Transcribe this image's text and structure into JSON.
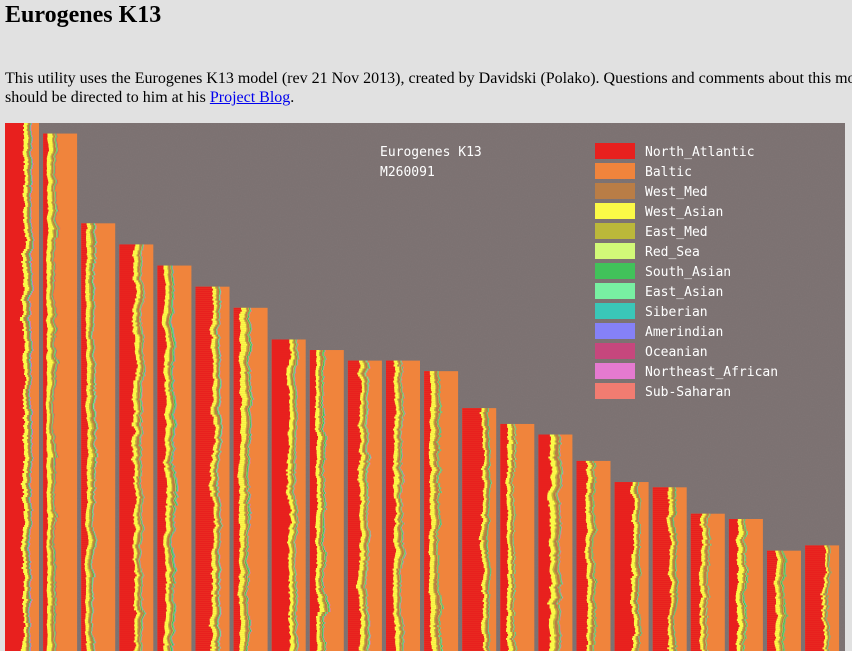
{
  "page": {
    "title": "Eurogenes K13",
    "intro_part1": "This utility uses the Eurogenes K13 model (rev 21 Nov 2013), created by Davidski (Polako). Questions and comments about this mo",
    "intro_part2": "should be directed to him at his ",
    "link_label": "Project Blog",
    "intro_end": "."
  },
  "chart_data": {
    "type": "bar",
    "title": "Eurogenes K13",
    "subtitle": "M260091",
    "background_color": "#7f7575",
    "legend_position": "top-right",
    "components": [
      {
        "name": "North_Atlantic",
        "color": "#e8201e"
      },
      {
        "name": "Baltic",
        "color": "#f0843c"
      },
      {
        "name": "West_Med",
        "color": "#b97d46"
      },
      {
        "name": "West_Asian",
        "color": "#fbfa47"
      },
      {
        "name": "East_Med",
        "color": "#bbb83a"
      },
      {
        "name": "Red_Sea",
        "color": "#d2f978"
      },
      {
        "name": "South_Asian",
        "color": "#41c25a"
      },
      {
        "name": "East_Asian",
        "color": "#78f0a2"
      },
      {
        "name": "Siberian",
        "color": "#3ac7b8"
      },
      {
        "name": "Amerindian",
        "color": "#8581f7"
      },
      {
        "name": "Oceanian",
        "color": "#c6477d"
      },
      {
        "name": "Northeast_African",
        "color": "#e57ad0"
      },
      {
        "name": "Sub-Saharan",
        "color": "#f17c71"
      }
    ],
    "columns": [
      {
        "value": 100,
        "mix": [
          0.55,
          0.22,
          0.05,
          0.1,
          0.02,
          0,
          0.02,
          0.01,
          0.01,
          0.01,
          0,
          0.01,
          0
        ]
      },
      {
        "value": 98,
        "mix": [
          0.12,
          0.62,
          0.05,
          0.12,
          0.03,
          0.01,
          0.02,
          0.01,
          0.01,
          0,
          0.01,
          0,
          0
        ]
      },
      {
        "value": 81,
        "mix": [
          0.15,
          0.6,
          0.05,
          0.1,
          0.04,
          0,
          0.02,
          0.02,
          0.01,
          0,
          0,
          0.01,
          0
        ]
      },
      {
        "value": 77,
        "mix": [
          0.45,
          0.3,
          0.06,
          0.1,
          0.03,
          0.01,
          0.02,
          0.01,
          0.01,
          0,
          0,
          0.01,
          0
        ]
      },
      {
        "value": 73,
        "mix": [
          0.22,
          0.5,
          0.06,
          0.11,
          0.03,
          0.01,
          0.03,
          0.01,
          0.02,
          0,
          0,
          0.01,
          0
        ]
      },
      {
        "value": 69,
        "mix": [
          0.5,
          0.26,
          0.05,
          0.1,
          0.03,
          0,
          0.02,
          0.02,
          0.01,
          0,
          0,
          0.01,
          0
        ]
      },
      {
        "value": 65,
        "mix": [
          0.2,
          0.5,
          0.06,
          0.14,
          0.03,
          0.01,
          0.03,
          0.01,
          0.01,
          0,
          0,
          0.01,
          0
        ]
      },
      {
        "value": 59,
        "mix": [
          0.5,
          0.27,
          0.04,
          0.1,
          0.03,
          0.01,
          0.02,
          0.01,
          0.01,
          0,
          0,
          0.01,
          0
        ]
      },
      {
        "value": 57,
        "mix": [
          0.2,
          0.55,
          0.05,
          0.1,
          0.03,
          0.01,
          0.03,
          0.01,
          0.01,
          0,
          0,
          0.01,
          0
        ]
      },
      {
        "value": 55,
        "mix": [
          0.35,
          0.38,
          0.06,
          0.11,
          0.03,
          0.01,
          0.02,
          0.02,
          0.01,
          0,
          0,
          0.01,
          0
        ]
      },
      {
        "value": 55,
        "mix": [
          0.25,
          0.5,
          0.05,
          0.11,
          0.03,
          0.01,
          0.02,
          0.01,
          0.01,
          0,
          0,
          0.01,
          0
        ]
      },
      {
        "value": 53,
        "mix": [
          0.18,
          0.55,
          0.07,
          0.12,
          0.03,
          0.01,
          0.02,
          0.01,
          0.01,
          0,
          0,
          0,
          0
        ]
      },
      {
        "value": 46,
        "mix": [
          0.6,
          0.2,
          0.05,
          0.08,
          0.03,
          0,
          0.02,
          0.01,
          0.01,
          0,
          0,
          0,
          0
        ]
      },
      {
        "value": 43,
        "mix": [
          0.2,
          0.58,
          0.05,
          0.1,
          0.03,
          0.01,
          0.01,
          0.01,
          0.01,
          0,
          0,
          0,
          0
        ]
      },
      {
        "value": 41,
        "mix": [
          0.35,
          0.35,
          0.08,
          0.12,
          0.04,
          0.01,
          0.02,
          0.01,
          0.01,
          0,
          0,
          0.01,
          0
        ]
      },
      {
        "value": 36,
        "mix": [
          0.3,
          0.45,
          0.06,
          0.11,
          0.03,
          0.01,
          0.02,
          0.01,
          0.01,
          0,
          0,
          0,
          0
        ]
      },
      {
        "value": 32,
        "mix": [
          0.55,
          0.25,
          0.05,
          0.09,
          0.03,
          0,
          0.01,
          0.01,
          0.01,
          0,
          0,
          0,
          0
        ]
      },
      {
        "value": 31,
        "mix": [
          0.5,
          0.3,
          0.05,
          0.08,
          0.03,
          0,
          0.02,
          0.01,
          0.01,
          0,
          0,
          0,
          0
        ]
      },
      {
        "value": 26,
        "mix": [
          0.3,
          0.48,
          0.06,
          0.09,
          0.03,
          0.01,
          0.01,
          0.01,
          0.01,
          0,
          0,
          0,
          0
        ]
      },
      {
        "value": 25,
        "mix": [
          0.25,
          0.5,
          0.05,
          0.12,
          0.03,
          0.01,
          0.02,
          0.01,
          0.01,
          0,
          0,
          0,
          0
        ]
      },
      {
        "value": 19,
        "mix": [
          0.25,
          0.5,
          0.05,
          0.1,
          0.04,
          0.01,
          0.03,
          0.01,
          0.01,
          0,
          0,
          0,
          0
        ]
      },
      {
        "value": 20,
        "mix": [
          0.55,
          0.3,
          0.04,
          0.06,
          0.02,
          0,
          0.01,
          0.01,
          0.01,
          0,
          0,
          0,
          0
        ]
      }
    ]
  }
}
